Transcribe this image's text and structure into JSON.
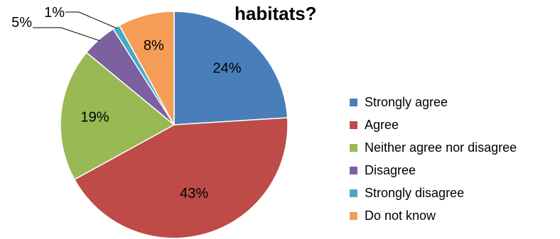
{
  "chart_data": {
    "type": "pie",
    "title": "habitats?",
    "categories": [
      "Strongly agree",
      "Agree",
      "Neither agree nor disagree",
      "Disagree",
      "Strongly disagree",
      "Do not know"
    ],
    "values": [
      24,
      43,
      19,
      5,
      1,
      8
    ],
    "labels": [
      "24%",
      "43%",
      "19%",
      "5%",
      "1%",
      "8%"
    ],
    "colors": [
      "#4a7ebb",
      "#be4b48",
      "#98b954",
      "#7d60a0",
      "#46aac5",
      "#f59d56"
    ],
    "legend_position": "right",
    "start_angle": "12 o'clock",
    "direction": "clockwise"
  }
}
